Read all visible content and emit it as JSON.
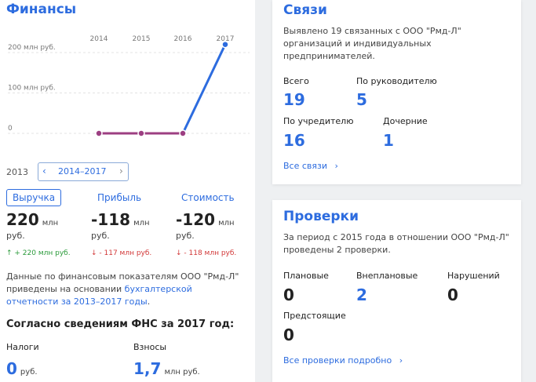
{
  "finance": {
    "title": "Финансы",
    "chart_data": {
      "type": "line",
      "x": [
        "2014",
        "2015",
        "2016",
        "2017"
      ],
      "series": [
        {
          "values": [
            0,
            0,
            0,
            220
          ]
        }
      ],
      "y_ticks": [
        "200 млн руб.",
        "100 млн руб.",
        "0"
      ],
      "ylim": [
        0,
        230
      ],
      "grid": true
    },
    "period": {
      "start_year": "2013",
      "range": "2014–2017",
      "prev_icon": "chevron-left-icon",
      "next_icon": "chevron-right-icon"
    },
    "tabs": [
      "Выручка",
      "Прибыль",
      "Стоимость"
    ],
    "metrics": [
      {
        "value": "220",
        "unit": "млн",
        "unit2": "руб.",
        "delta": "↑ + 220 млн руб.",
        "dir": "up"
      },
      {
        "value": "-118",
        "unit": "млн",
        "unit2": "руб.",
        "delta": "↓ - 117 млн руб.",
        "dir": "down"
      },
      {
        "value": "-120",
        "unit": "млн",
        "unit2": "руб.",
        "delta": "↓ - 118 млн руб.",
        "dir": "down"
      }
    ],
    "note_l1": "Данные по финансовым показателям ООО \"Рмд-Л\"",
    "note_l2a": "приведены на основании",
    "note_link_l2": "бухгалтерской",
    "note_link_l3": "отчетности за 2013–2017 годы",
    "note_l3_end": ".",
    "fns_heading": "Согласно сведениям ФНС за 2017 год:",
    "taxes_label": "Налоги",
    "taxes_value": "0",
    "taxes_unit": "руб.",
    "contrib_label": "Взносы",
    "contrib_value": "1,7",
    "contrib_unit": "млн руб."
  },
  "connections": {
    "title": "Связи",
    "desc_l1": "Выявлено 19 связанных с ООО \"Рмд-Л\"",
    "desc_l2": "организаций и индивидуальных",
    "desc_l3": "предпринимателей.",
    "items": [
      {
        "label": "Всего",
        "value": "19"
      },
      {
        "label": "По руководителю",
        "value": "5"
      },
      {
        "label": "По учредителю",
        "value": "16"
      },
      {
        "label": "Дочерние",
        "value": "1"
      }
    ],
    "all_link": "Все связи",
    "link_icon": "chevron-right-icon"
  },
  "inspections": {
    "title": "Проверки",
    "desc_l1": "За период с 2015 года в отношении ООО \"Рмд-Л\"",
    "desc_l2": "проведены 2 проверки.",
    "items": [
      {
        "label": "Плановые",
        "value": "0"
      },
      {
        "label": "Внеплановые",
        "value": "2"
      },
      {
        "label": "Нарушений",
        "value": "0"
      },
      {
        "label": "Предстоящие",
        "value": "0"
      }
    ],
    "all_link": "Все проверки подробно",
    "link_icon": "chevron-right-icon"
  }
}
